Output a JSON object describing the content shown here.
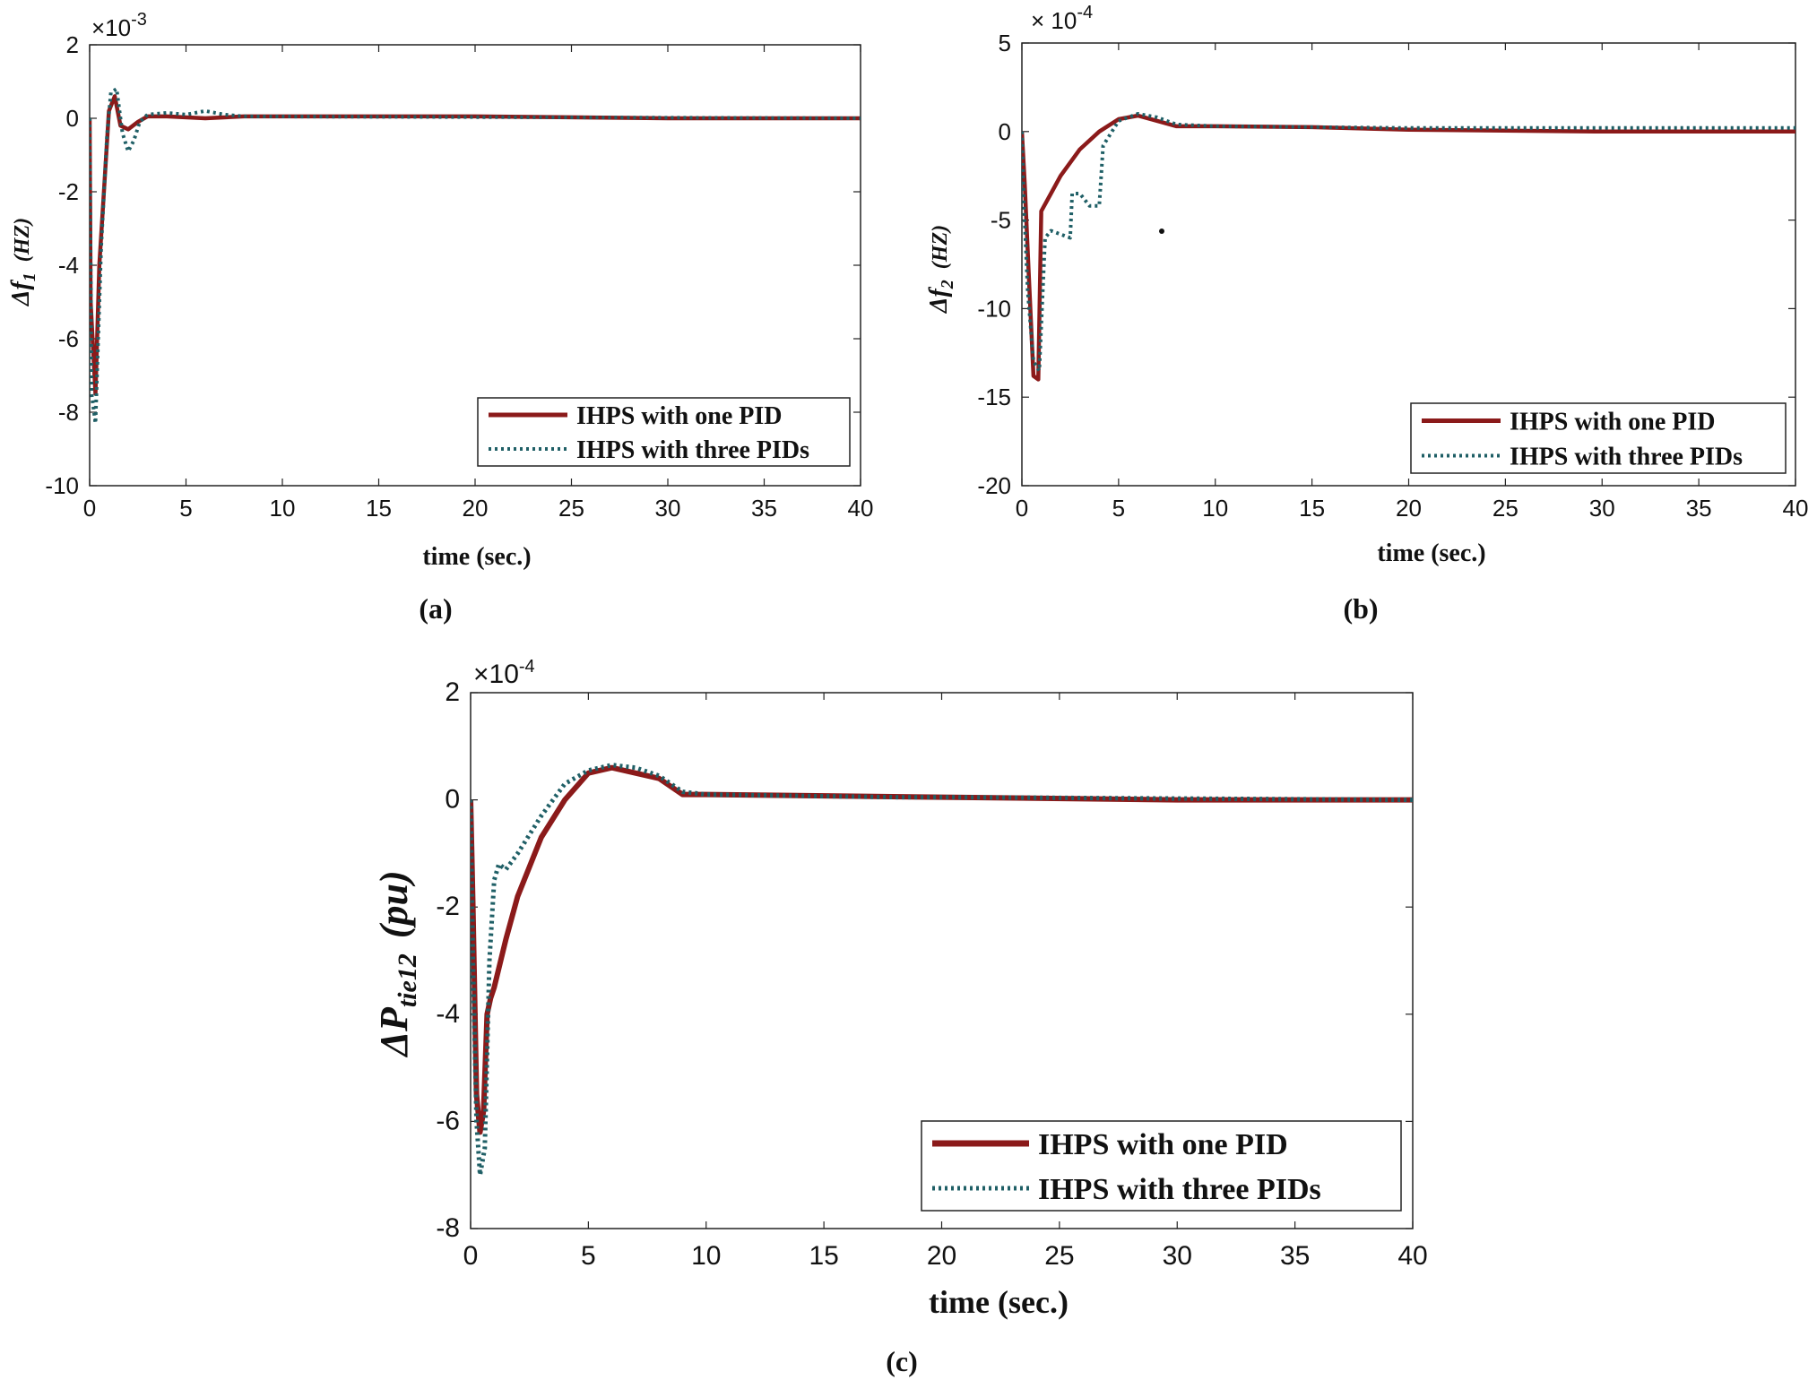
{
  "figure": {
    "captions": [
      "(a)",
      "(b)",
      "(c)"
    ]
  },
  "chart_data": [
    {
      "type": "line",
      "panel": "a",
      "caption": "(a)",
      "ylabel_main": "Δf",
      "ylabel_sub": "1",
      "ylabel_unit": "(HZ)",
      "xlabel": "time (sec.)",
      "exponent_base": "×10",
      "exponent_power": "-3",
      "xlim": [
        0,
        40
      ],
      "ylim": [
        -10,
        2
      ],
      "xticks": [
        0,
        5,
        10,
        15,
        20,
        25,
        30,
        35,
        40
      ],
      "yticks": [
        2,
        0,
        -2,
        -4,
        -6,
        -8,
        -10
      ],
      "ytick_labels": [
        "2",
        "0",
        "-2",
        "-4",
        "-6",
        "-8",
        "-10"
      ],
      "legend_position": "bottom-right",
      "series": [
        {
          "name": "IHPS with one PID",
          "color": "#8b1a1a",
          "style": "solid",
          "x": [
            0,
            0.05,
            0.3,
            0.5,
            0.8,
            1.0,
            1.3,
            1.6,
            2.0,
            2.5,
            3.0,
            4.0,
            6.0,
            8.0,
            10.0,
            20.0,
            30.0,
            40.0
          ],
          "y": [
            0,
            -5.0,
            -7.5,
            -4.0,
            -1.5,
            0.2,
            0.6,
            -0.2,
            -0.3,
            -0.1,
            0.05,
            0.05,
            0.0,
            0.05,
            0.05,
            0.05,
            0.0,
            0.0
          ]
        },
        {
          "name": "IHPS with three PIDs",
          "color": "#1f5f66",
          "style": "dotted",
          "x": [
            0,
            0.1,
            0.3,
            0.6,
            0.9,
            1.1,
            1.4,
            1.7,
            2.0,
            2.3,
            2.6,
            3.0,
            4.0,
            5.0,
            6.0,
            7.0,
            8.0,
            40.0
          ],
          "y": [
            0,
            -7.5,
            -8.3,
            -3.5,
            -0.5,
            0.7,
            0.8,
            -0.4,
            -0.9,
            -0.6,
            -0.1,
            0.1,
            0.15,
            0.1,
            0.2,
            0.1,
            0.05,
            0.0
          ]
        }
      ]
    },
    {
      "type": "line",
      "panel": "b",
      "caption": "(b)",
      "ylabel_main": "Δf",
      "ylabel_sub": "2",
      "ylabel_unit": "(HZ)",
      "xlabel": "time (sec.)",
      "exponent_base": "× 10",
      "exponent_power": "-4",
      "xlim": [
        0,
        40
      ],
      "ylim": [
        -20,
        5
      ],
      "xticks": [
        0,
        5,
        10,
        15,
        20,
        25,
        30,
        35,
        40
      ],
      "yticks": [
        5,
        0,
        -5,
        -10,
        -15,
        -20
      ],
      "ytick_labels": [
        "5",
        "0",
        "-5",
        "-10",
        "-15",
        "-20"
      ],
      "legend_position": "bottom-right",
      "series": [
        {
          "name": "IHPS with one PID",
          "color": "#8b1a1a",
          "style": "solid",
          "x": [
            0,
            0.15,
            0.35,
            0.6,
            0.85,
            1.0,
            1.5,
            2.0,
            3.0,
            4.0,
            5.0,
            6.0,
            7.0,
            8.0,
            9.0,
            10.0,
            15.0,
            20.0,
            30.0,
            40.0
          ],
          "y": [
            0,
            -3.0,
            -8.0,
            -13.8,
            -14.0,
            -4.5,
            -3.5,
            -2.5,
            -1.0,
            0.0,
            0.7,
            0.9,
            0.6,
            0.3,
            0.3,
            0.3,
            0.25,
            0.1,
            0.0,
            0.0
          ]
        },
        {
          "name": "IHPS with three PIDs",
          "color": "#1f5f66",
          "style": "dotted",
          "x": [
            0,
            0.1,
            0.3,
            0.6,
            0.9,
            1.2,
            1.5,
            2.5,
            2.6,
            3.0,
            3.5,
            4.0,
            4.2,
            5.0,
            6.0,
            7.0,
            8.0,
            10.0,
            20.0,
            30.0,
            40.0
          ],
          "y": [
            0,
            -4.0,
            -9.0,
            -13.0,
            -13.5,
            -6.0,
            -5.6,
            -6.0,
            -3.5,
            -3.5,
            -4.2,
            -4.2,
            -0.8,
            0.6,
            1.0,
            0.8,
            0.4,
            0.3,
            0.2,
            0.2,
            0.2
          ]
        }
      ]
    },
    {
      "type": "line",
      "panel": "c",
      "caption": "(c)",
      "ylabel_main": "ΔP",
      "ylabel_sub": "tie12",
      "ylabel_unit": "(pu)",
      "xlabel": "time (sec.)",
      "exponent_base": "×10",
      "exponent_power": "-4",
      "xlim": [
        0,
        40
      ],
      "ylim": [
        -8,
        2
      ],
      "xticks": [
        0,
        5,
        10,
        15,
        20,
        25,
        30,
        35,
        40
      ],
      "yticks": [
        2,
        0,
        -2,
        -4,
        -6,
        -8
      ],
      "ytick_labels": [
        "2",
        "0",
        "-2",
        "-4",
        "-6",
        "-8"
      ],
      "legend_position": "bottom-right",
      "series": [
        {
          "name": "IHPS with one PID",
          "color": "#8b1a1a",
          "style": "solid",
          "x": [
            0,
            0.1,
            0.25,
            0.4,
            0.55,
            0.7,
            0.85,
            1.0,
            1.5,
            2.0,
            3.0,
            4.0,
            5.0,
            6.0,
            7.0,
            8.0,
            9.0,
            10.0,
            20.0,
            30.0,
            40.0
          ],
          "y": [
            0,
            -2.0,
            -5.5,
            -6.2,
            -5.8,
            -4.0,
            -3.7,
            -3.5,
            -2.6,
            -1.8,
            -0.7,
            0.0,
            0.5,
            0.6,
            0.5,
            0.4,
            0.1,
            0.1,
            0.05,
            0.0,
            0.0
          ]
        },
        {
          "name": "IHPS with three PIDs",
          "color": "#1f5f66",
          "style": "dotted",
          "x": [
            0,
            0.1,
            0.25,
            0.4,
            0.6,
            0.8,
            1.0,
            1.2,
            1.5,
            2.0,
            3.0,
            4.0,
            5.0,
            6.0,
            7.0,
            8.0,
            9.0,
            10.0,
            18.0,
            20.0,
            40.0
          ],
          "y": [
            0,
            -3.0,
            -6.0,
            -7.0,
            -6.5,
            -3.0,
            -1.5,
            -1.2,
            -1.3,
            -1.0,
            -0.3,
            0.3,
            0.55,
            0.65,
            0.6,
            0.45,
            0.15,
            0.1,
            0.05,
            0.05,
            0.0
          ]
        }
      ]
    }
  ]
}
